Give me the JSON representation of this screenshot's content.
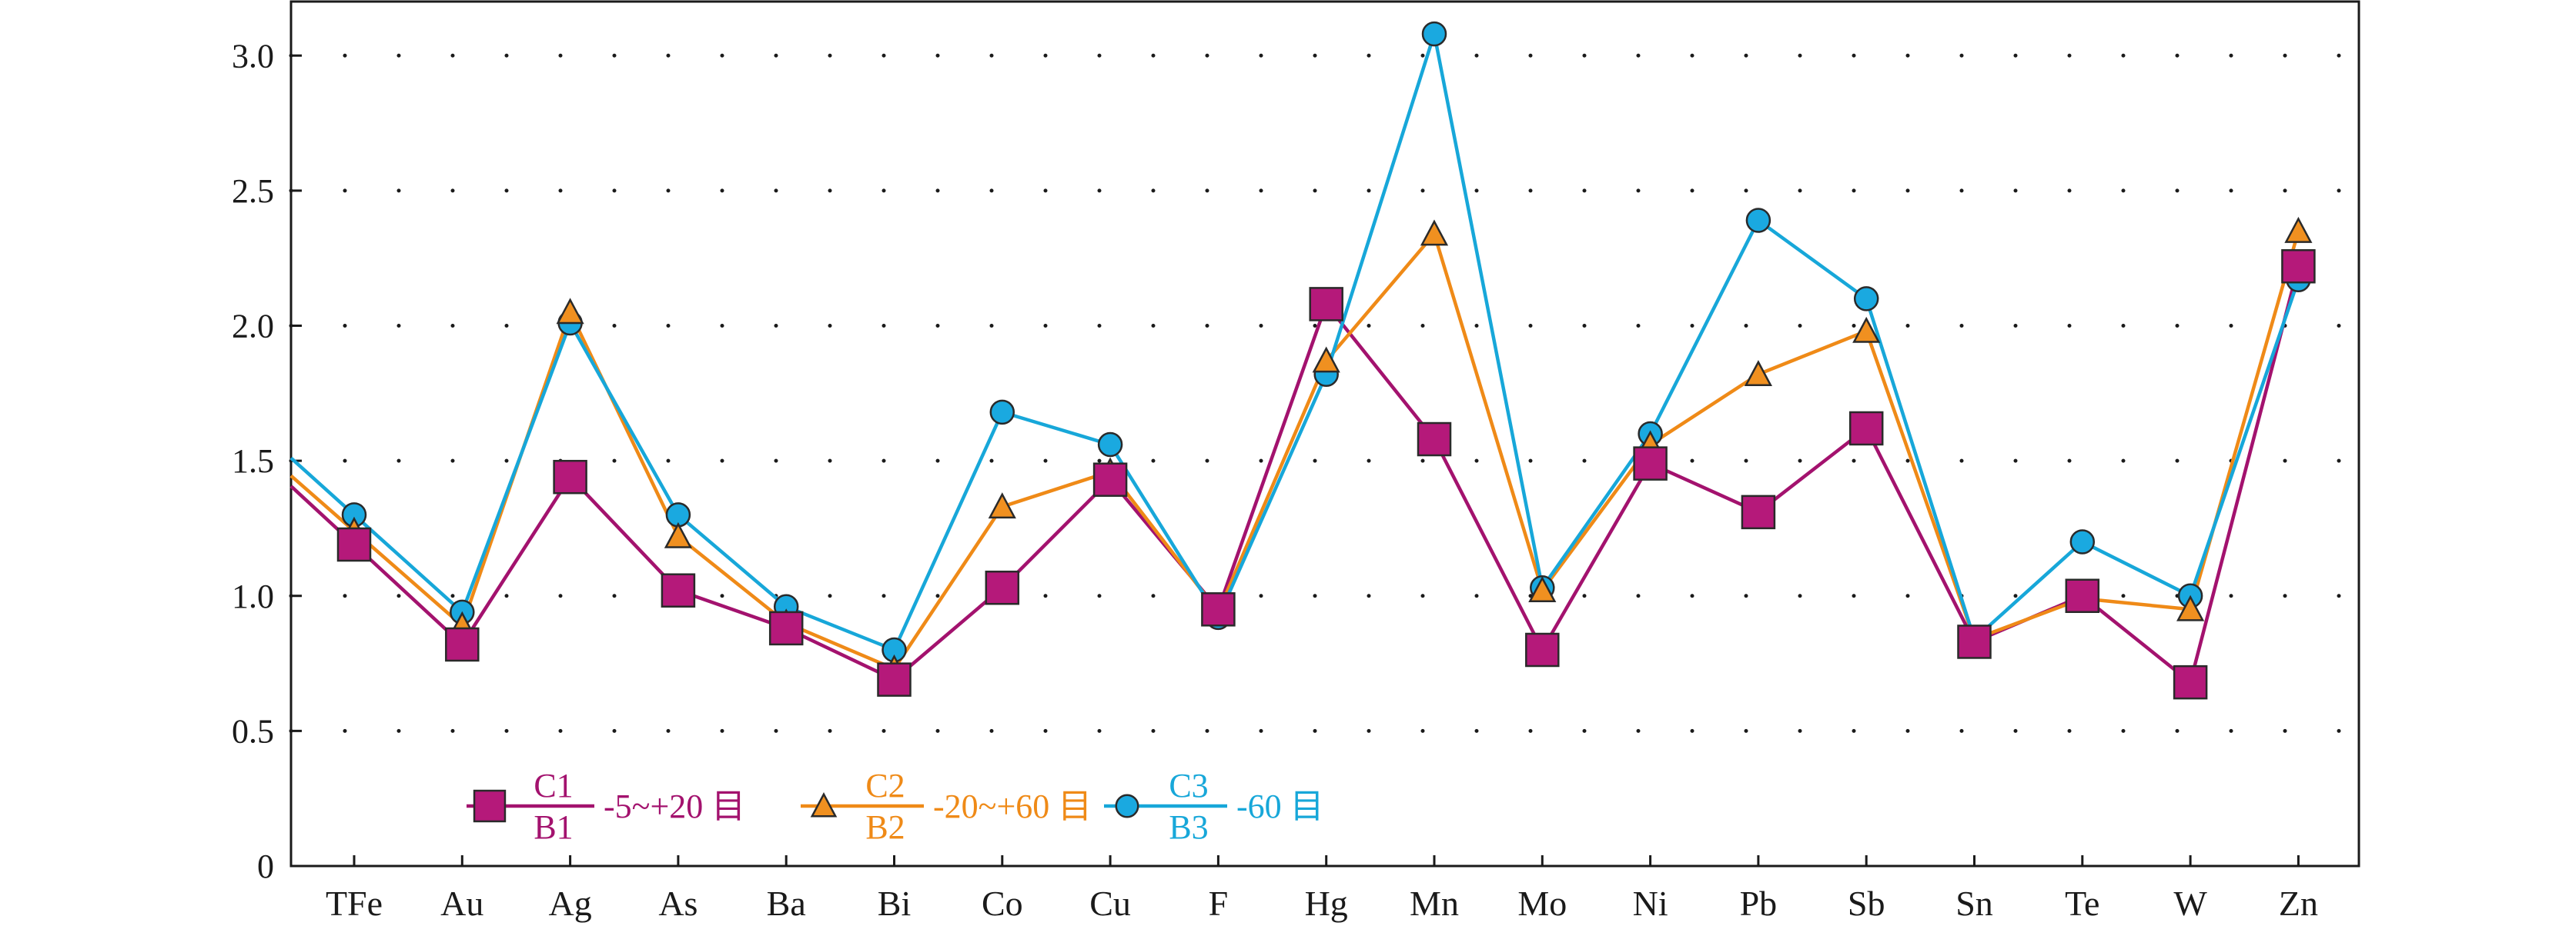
{
  "chart_data": {
    "type": "line",
    "categories": [
      "TFe",
      "Au",
      "Ag",
      "As",
      "Ba",
      "Bi",
      "Co",
      "Cu",
      "F",
      "Hg",
      "Mn",
      "Mo",
      "Ni",
      "Pb",
      "Sb",
      "Sn",
      "Te",
      "W",
      "Zn"
    ],
    "ylim": [
      0,
      3.2
    ],
    "yticks": [
      0,
      0.5,
      1.0,
      1.5,
      2.0,
      2.5,
      3.0
    ],
    "ytick_labels": [
      "0",
      "0.5",
      "1.0",
      "1.5",
      "2.0",
      "2.5",
      "3.0"
    ],
    "grid": "dotted horizontal",
    "legend_position": "bottom-left",
    "series": [
      {
        "key": "c1",
        "numerator": "C1",
        "denominator": "B1",
        "label": "-5~+20 目",
        "color": "#a3126e",
        "marker_fill": "#b5197a",
        "marker": "square",
        "values": [
          1.19,
          0.82,
          1.44,
          1.02,
          0.88,
          0.69,
          1.03,
          1.43,
          0.95,
          2.08,
          1.58,
          0.8,
          1.49,
          1.31,
          1.62,
          0.83,
          1.0,
          0.68,
          2.22
        ]
      },
      {
        "key": "c2",
        "numerator": "C2",
        "denominator": "B2",
        "label": "-20~+60 目",
        "color": "#ef8a17",
        "marker_fill": "#f09020",
        "marker": "triangle",
        "values": [
          1.24,
          0.89,
          2.05,
          1.22,
          0.9,
          0.73,
          1.33,
          1.46,
          0.94,
          1.87,
          2.34,
          1.02,
          1.56,
          1.82,
          1.98,
          0.84,
          0.99,
          0.95,
          2.35
        ]
      },
      {
        "key": "c3",
        "numerator": "C3",
        "denominator": "B3",
        "label": "-60 目",
        "color": "#17a7d9",
        "marker_fill": "#1aa9e0",
        "marker": "circle",
        "values": [
          1.3,
          0.94,
          2.01,
          1.3,
          0.96,
          0.8,
          1.68,
          1.56,
          0.92,
          1.82,
          3.08,
          1.03,
          1.6,
          2.39,
          2.1,
          0.84,
          1.2,
          1.0,
          2.17
        ]
      }
    ]
  }
}
